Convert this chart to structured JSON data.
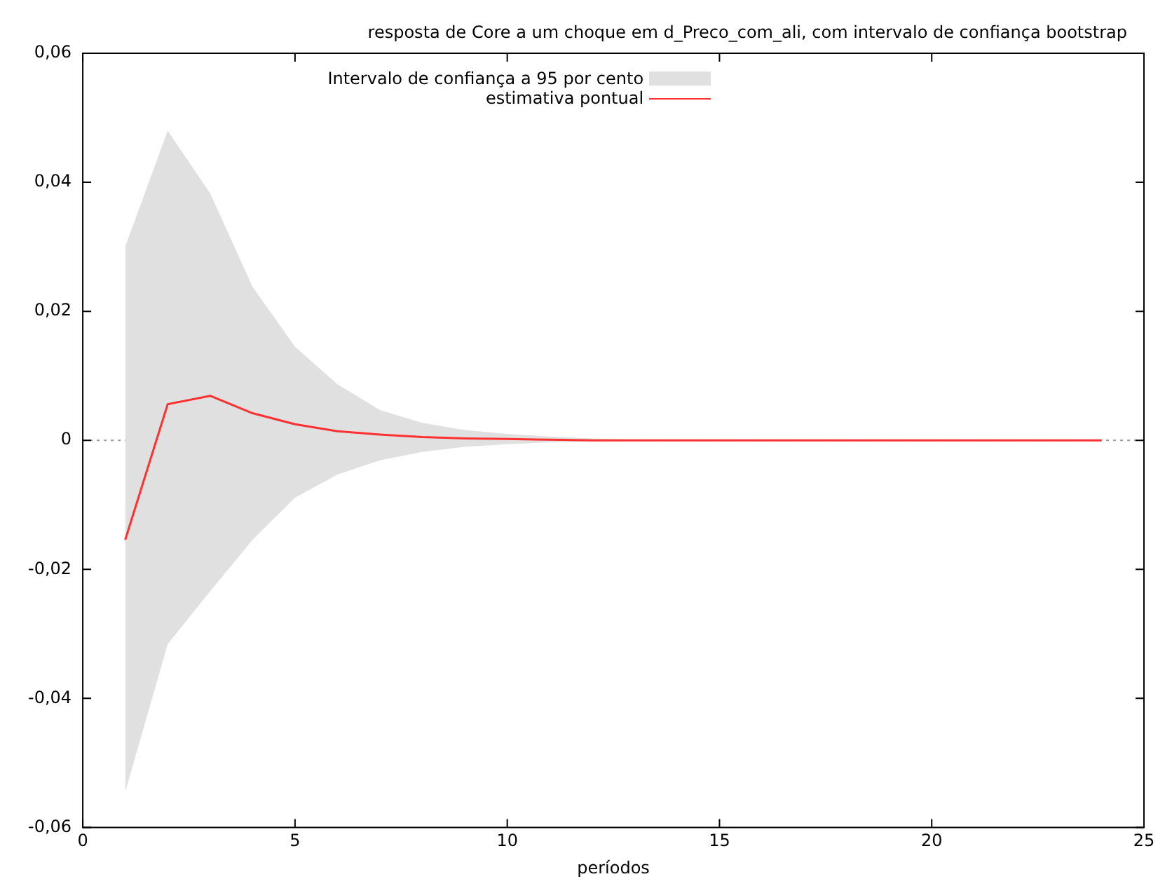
{
  "chart_data": {
    "type": "line",
    "title": "resposta de Core a um choque em d_Preco_com_ali, com intervalo de confiança bootstrap",
    "xlabel": "períodos",
    "x": [
      1,
      2,
      3,
      4,
      5,
      6,
      7,
      8,
      9,
      10,
      11,
      12,
      13,
      14,
      15,
      16,
      17,
      18,
      19,
      20,
      21,
      22,
      23,
      24
    ],
    "series": [
      {
        "name": "estimativa pontual",
        "type": "line",
        "color": "#ff3030",
        "values": [
          -0.0154,
          0.0056,
          0.0069,
          0.0042,
          0.0025,
          0.0014,
          0.0009,
          0.0005,
          0.0003,
          0.0002,
          0.0001,
          0,
          0,
          0,
          0,
          0,
          0,
          0,
          0,
          0,
          0,
          0,
          0,
          0
        ],
        "lower": [
          -0.0545,
          -0.0316,
          -0.0234,
          -0.0154,
          -0.0089,
          -0.0053,
          -0.0031,
          -0.0018,
          -0.001,
          -0.0006,
          -0.0003,
          -0.0002,
          -0.0001,
          0,
          0,
          0,
          0,
          0,
          0,
          0,
          0,
          0,
          0,
          0
        ],
        "upper": [
          0.03,
          0.048,
          0.0383,
          0.0238,
          0.0145,
          0.0087,
          0.0047,
          0.0027,
          0.0016,
          0.001,
          0.0006,
          0.0003,
          0.0001,
          0,
          0,
          0,
          0,
          0,
          0,
          0,
          0,
          0,
          0,
          0
        ]
      }
    ],
    "annotations": [
      "Intervalo de confiança a 95 por cento"
    ],
    "xlim": [
      0,
      25
    ],
    "xticks": [
      0,
      5,
      10,
      15,
      20,
      25
    ],
    "ylim": [
      -0.06,
      0.06
    ],
    "yticks": [
      {
        "value": -0.06,
        "label": "-0,06"
      },
      {
        "value": -0.04,
        "label": "-0,04"
      },
      {
        "value": -0.02,
        "label": "-0,02"
      },
      0,
      {
        "value": 0.02,
        "label": "0,02"
      },
      {
        "value": 0.04,
        "label": "0,04"
      },
      {
        "value": 0.06,
        "label": "0,06"
      }
    ],
    "ref_lines": [
      {
        "axis": "y",
        "value": 0,
        "color": "#999999",
        "line_style": "dotted"
      }
    ],
    "grid": false,
    "legend": "top",
    "marker": "none",
    "line_style": "solid"
  }
}
